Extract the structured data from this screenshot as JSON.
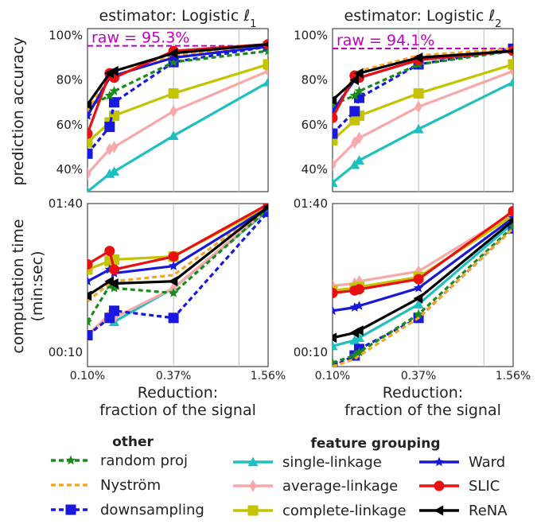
{
  "chart_data": {
    "type": "line",
    "x_ticks": [
      "0.10%",
      "0.37%",
      "1.56%"
    ],
    "x_values_percent": [
      0.1,
      0.37,
      1.56
    ],
    "xscale": "log",
    "xlabel_line1": "Reduction:",
    "xlabel_line2": "fraction of the signal",
    "row_labels": {
      "accuracy": "prediction accuracy",
      "time_line1": "computation time",
      "time_line2": "(min:sec)"
    },
    "accuracy_ticks": [
      "40%",
      "60%",
      "80%",
      "100%"
    ],
    "time_ticks": [
      "00:10",
      "01:40"
    ],
    "accuracy_ylim": [
      30,
      103
    ],
    "time_ylim_seconds": [
      8,
      100
    ],
    "time_yscale": "log",
    "x_points": [
      0.1,
      0.14,
      0.15,
      0.37,
      1.56
    ],
    "panels": [
      {
        "title": "estimator: Logistic ℓ",
        "title_sub": "1",
        "raw_label": "raw = 95.3%",
        "raw_value": 95.3,
        "accuracy": {
          "random_proj": [
            68,
            73,
            75,
            88,
            93
          ],
          "nystrom": [
            66,
            82,
            84,
            91,
            95
          ],
          "downsampling": [
            47,
            59,
            70,
            88,
            95
          ],
          "single_linkage": [
            30,
            38,
            39,
            55,
            79
          ],
          "average_linkage": [
            38,
            49,
            50,
            66,
            84
          ],
          "complete_linkage": [
            52,
            61,
            64,
            74,
            87
          ],
          "ward": [
            64,
            81,
            82,
            90,
            95
          ],
          "slic": [
            56,
            83,
            81,
            93,
            96
          ],
          "rena": [
            69,
            83,
            84,
            92,
            96
          ]
        },
        "time": {
          "random_proj": [
            16,
            28,
            27,
            25,
            92
          ],
          "nystrom": [
            22,
            29,
            30,
            33,
            96
          ],
          "downsampling": [
            13,
            17,
            19,
            17,
            88
          ],
          "single_linkage": [
            13,
            18,
            16,
            27,
            90
          ],
          "average_linkage": [
            13,
            18,
            17,
            27,
            92
          ],
          "complete_linkage": [
            36,
            41,
            42,
            44,
            96
          ],
          "ward": [
            30,
            36,
            34,
            38,
            94
          ],
          "slic": [
            39,
            48,
            36,
            44,
            99
          ],
          "rena": [
            24,
            30,
            29,
            30,
            95
          ]
        }
      },
      {
        "title": "estimator: Logistic ℓ",
        "title_sub": "2",
        "raw_label": "raw = 94.1%",
        "raw_value": 94.1,
        "accuracy": {
          "random_proj": [
            69,
            73,
            75,
            87,
            93
          ],
          "nystrom": [
            65,
            82,
            84,
            91,
            94
          ],
          "downsampling": [
            56,
            66,
            72,
            87,
            94
          ],
          "single_linkage": [
            34,
            42,
            44,
            58,
            79
          ],
          "average_linkage": [
            42,
            52,
            54,
            68,
            84
          ],
          "complete_linkage": [
            53,
            62,
            64,
            74,
            87
          ],
          "ward": [
            66,
            80,
            81,
            89,
            93
          ],
          "slic": [
            63,
            82,
            81,
            89,
            93
          ],
          "rena": [
            71,
            80,
            83,
            90,
            93
          ]
        },
        "time": {
          "random_proj": [
            8.5,
            9.5,
            10,
            18,
            70
          ],
          "nystrom": [
            8,
            9,
            9.5,
            17,
            68
          ],
          "downsampling": [
            8,
            9.5,
            10.5,
            17,
            68
          ],
          "single_linkage": [
            11,
            12,
            12.5,
            21,
            74
          ],
          "average_linkage": [
            28,
            29,
            30,
            35,
            86
          ],
          "complete_linkage": [
            26,
            27,
            27.5,
            32,
            83
          ],
          "ward": [
            19,
            20,
            20.5,
            27,
            80
          ],
          "slic": [
            25,
            26,
            26.5,
            31,
            89
          ],
          "rena": [
            12.5,
            13.5,
            14,
            23,
            77
          ]
        }
      }
    ],
    "legend": {
      "other_title": "other",
      "grouping_title": "feature grouping",
      "entries": {
        "random_proj": "random proj",
        "nystrom": "Nyström",
        "downsampling": "downsampling",
        "single_linkage": "single-linkage",
        "average_linkage": "average-linkage",
        "complete_linkage": "complete-linkage",
        "ward": "Ward",
        "slic": "SLIC",
        "rena": "ReNA"
      }
    },
    "series_styles": {
      "random_proj": {
        "color": "#1a8a1a",
        "dash": "6,4",
        "marker": "star"
      },
      "nystrom": {
        "color": "#f5a623",
        "dash": "6,4",
        "marker": "none"
      },
      "downsampling": {
        "color": "#1818e0",
        "dash": "6,4",
        "marker": "square"
      },
      "single_linkage": {
        "color": "#1fbfbf",
        "dash": "",
        "marker": "triangle-up"
      },
      "average_linkage": {
        "color": "#f7a8a8",
        "dash": "",
        "marker": "diamond"
      },
      "complete_linkage": {
        "color": "#c4c400",
        "dash": "",
        "marker": "square"
      },
      "ward": {
        "color": "#1818d8",
        "dash": "",
        "marker": "star"
      },
      "slic": {
        "color": "#e81010",
        "dash": "",
        "marker": "circle"
      },
      "rena": {
        "color": "#000000",
        "dash": "",
        "marker": "triangle-left"
      }
    },
    "raw_line_color": "#c000c0"
  }
}
